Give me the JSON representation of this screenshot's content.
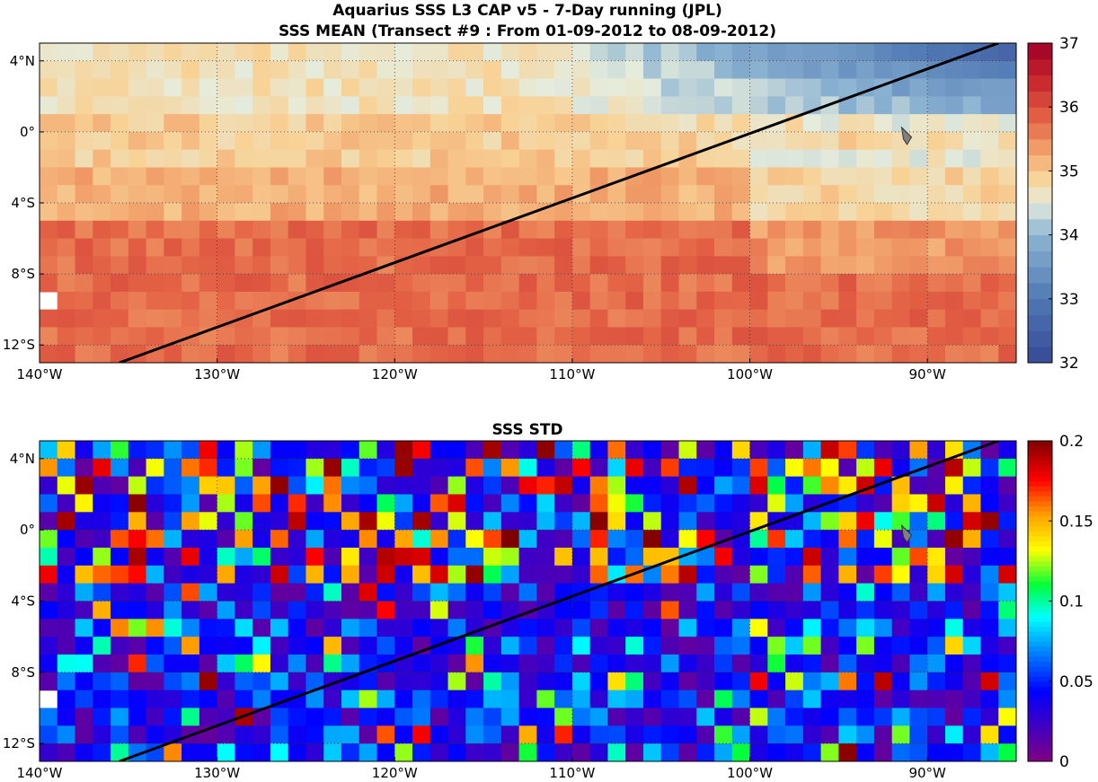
{
  "figure": {
    "title_line1": "Aquarius SSS L3 CAP v5 - 7-Day running (JPL)",
    "title_line2": "SSS MEAN (Transect #9 : From 01-09-2012 to 08-09-2012)"
  },
  "chart_data": [
    {
      "type": "heatmap",
      "title": "SSS MEAN (Transect #9 : From 01-09-2012 to 08-09-2012)",
      "xlim": [
        -140,
        -85
      ],
      "ylim": [
        -13,
        5
      ],
      "x_ticks": [
        -140,
        -130,
        -120,
        -110,
        -100,
        -90
      ],
      "x_tick_labels": [
        "140°W",
        "130°W",
        "120°W",
        "110°W",
        "100°W",
        "90°W"
      ],
      "y_ticks": [
        4,
        0,
        -4,
        -8,
        -12
      ],
      "y_tick_labels": [
        "4°N",
        "0°",
        "4°S",
        "8°S",
        "12°S"
      ],
      "grid": "dotted",
      "colorbar": {
        "min": 32,
        "max": 37,
        "ticks": [
          37,
          36,
          35,
          34,
          33,
          32
        ],
        "colormap": "blue-white-red diverging"
      },
      "field_description": "Salinity ~35.5–36 in south and west, ~35 in central equatorial band, fresher 33–34 in north-east",
      "transect_line": {
        "from": [
          -135.5,
          -13
        ],
        "to": [
          -86,
          5
        ]
      },
      "missing_cells": [
        [
          -140,
          -9.5
        ],
        [
          -90.5,
          0
        ],
        [
          -90.5,
          -1
        ]
      ]
    },
    {
      "type": "heatmap",
      "title": "SSS STD",
      "xlim": [
        -140,
        -85
      ],
      "ylim": [
        -13,
        5
      ],
      "x_ticks": [
        -140,
        -130,
        -120,
        -110,
        -100,
        -90
      ],
      "x_tick_labels": [
        "140°W",
        "130°W",
        "120°W",
        "110°W",
        "100°W",
        "90°W"
      ],
      "y_ticks": [
        4,
        0,
        -4,
        -8,
        -12
      ],
      "y_tick_labels": [
        "4°N",
        "0°",
        "4°S",
        "8°S",
        "12°S"
      ],
      "grid": "dotted",
      "colorbar": {
        "min": 0,
        "max": 0.2,
        "ticks": [
          0.2,
          0.15,
          0.1,
          0.05,
          0
        ],
        "tick_labels": [
          "0.2",
          "0.15",
          "0.1",
          "0.05",
          "0"
        ],
        "colormap": "jet"
      },
      "field_description": "Mostly 0.02–0.06 with patches up to 0.2",
      "transect_line": {
        "from": [
          -135.5,
          -13
        ],
        "to": [
          -86,
          5
        ]
      },
      "missing_cells": [
        [
          -140,
          -9.5
        ],
        [
          -90.5,
          0
        ],
        [
          -90.5,
          -1
        ]
      ]
    }
  ],
  "colors": {
    "transect": "#000000",
    "marker": "#808080"
  }
}
